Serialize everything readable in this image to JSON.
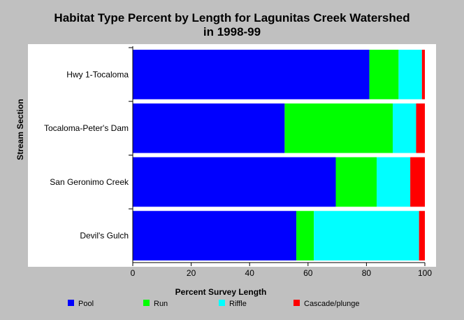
{
  "chart_data": {
    "type": "bar",
    "orientation": "horizontal",
    "stacked": true,
    "title_line1": "Habitat Type Percent by Length for Lagunitas Creek Watershed",
    "title_line2": "in 1998-99",
    "xlabel": "Percent Survey Length",
    "ylabel": "Stream Section",
    "xlim": [
      0,
      100
    ],
    "xticks": [
      "0",
      "20",
      "40",
      "60",
      "80",
      "100"
    ],
    "categories": [
      "Hwy 1-Tocaloma",
      "Tocaloma-Peter's Dam",
      "San Geronimo Creek",
      "Devil's Gulch"
    ],
    "series": [
      {
        "name": "Pool",
        "color": "#0000ff",
        "values": [
          81,
          52,
          69.5,
          56
        ]
      },
      {
        "name": "Run",
        "color": "#00ff00",
        "values": [
          10,
          37,
          14,
          6
        ]
      },
      {
        "name": "Riffle",
        "color": "#00ffff",
        "values": [
          8,
          8,
          11.5,
          36
        ]
      },
      {
        "name": "Cascade/plunge",
        "color": "#ff0000",
        "values": [
          1,
          3,
          5,
          2
        ]
      }
    ],
    "legend_position": "bottom",
    "grid": false
  }
}
